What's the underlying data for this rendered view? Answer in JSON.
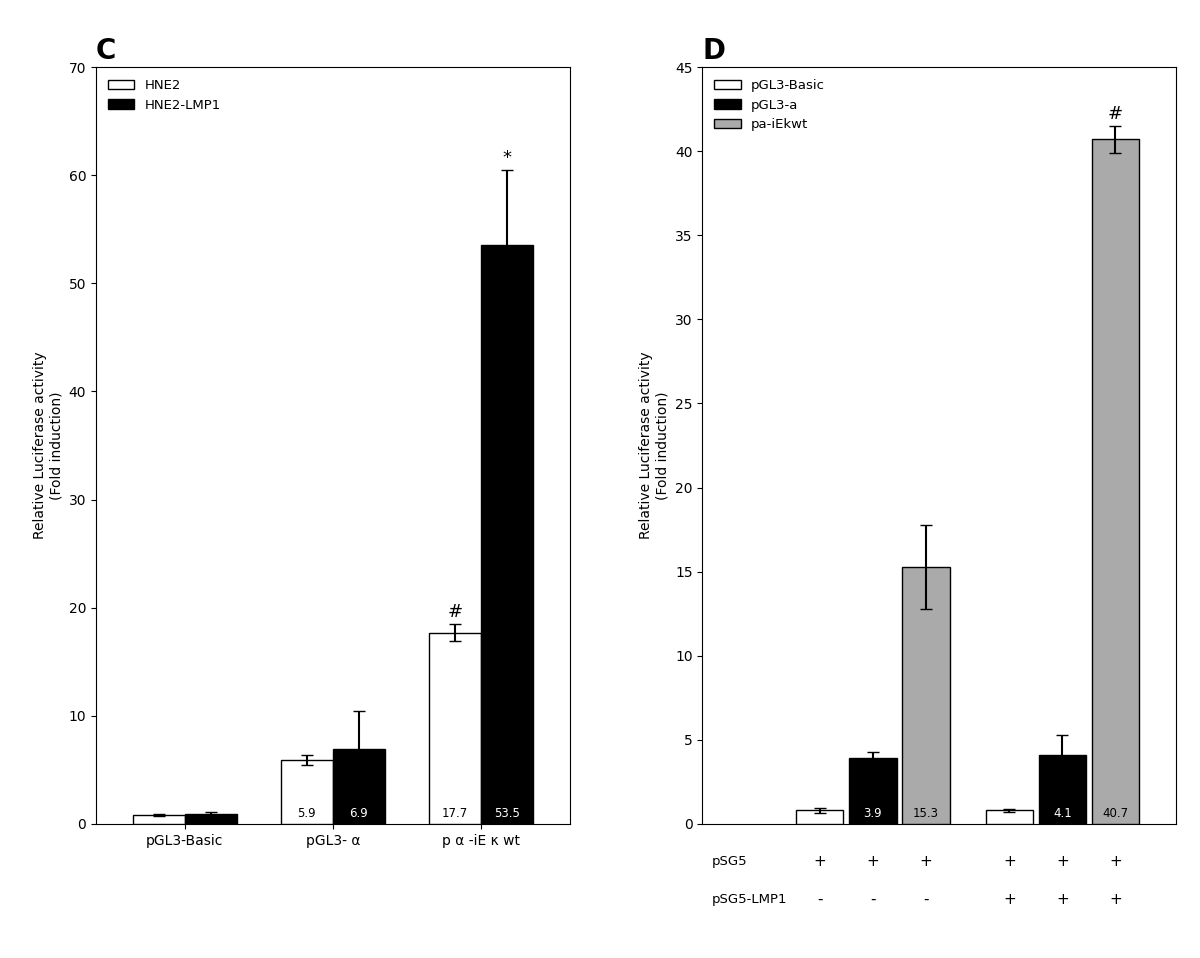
{
  "chart_data": [
    {
      "type": "bar",
      "title": "C",
      "categories": [
        "pGL3-Basic",
        "pGL3- α",
        "p α -iE κ wt"
      ],
      "y_label": "Relative Luciferase activity\n(Fold induction)",
      "ylim": [
        0,
        70
      ],
      "yticks": [
        0,
        10,
        20,
        30,
        40,
        50,
        60,
        70
      ],
      "legend": "upper left",
      "series": [
        {
          "name": "HNE2",
          "color": "white",
          "values": [
            0.8,
            5.9,
            17.7
          ],
          "errors": [
            0.1,
            0.5,
            0.8
          ],
          "value_labels": [
            null,
            "5.9",
            "17.7"
          ]
        },
        {
          "name": "HNE2-LMP1",
          "color": "black",
          "values": [
            0.9,
            6.9,
            53.5
          ],
          "errors": [
            0.2,
            3.5,
            7.0
          ],
          "value_labels": [
            null,
            "6.9",
            "53.5"
          ]
        }
      ],
      "annotations": [
        {
          "text": "#",
          "series": "HNE2",
          "category": "p α -iE κ wt"
        },
        {
          "text": "*",
          "series": "HNE2-LMP1",
          "category": "p α -iE κ wt"
        }
      ]
    },
    {
      "type": "bar",
      "title": "D",
      "categories": [
        null,
        null
      ],
      "tick_labels": "y",
      "y_label": "Relative Luciferase activity\n(Fold induction)",
      "ylim": [
        0,
        45
      ],
      "yticks": [
        0,
        5,
        10,
        15,
        20,
        25,
        30,
        35,
        40,
        45
      ],
      "legend": "upper left",
      "series": [
        {
          "name": "pGL3-Basic",
          "color": "white",
          "values": [
            0.8,
            0.8
          ],
          "errors": [
            0.15,
            0.1
          ],
          "value_labels": [
            null,
            null
          ]
        },
        {
          "name": "pGL3-a",
          "color": "black",
          "values": [
            3.9,
            4.1
          ],
          "errors": [
            0.4,
            1.2
          ],
          "value_labels": [
            "3.9",
            "4.1"
          ]
        },
        {
          "name": "pa-iEkwt",
          "color": "#aaaaaa",
          "values": [
            15.3,
            40.7
          ],
          "errors": [
            2.5,
            0.8
          ],
          "value_labels": [
            "15.3",
            "40.7"
          ]
        }
      ],
      "annotations": [
        {
          "text": "#",
          "series": "pa-iEkwt",
          "category_index": 1
        },
        {
          "text": "pSG5",
          "signs": [
            "+",
            "+",
            "+",
            "+",
            "+",
            "+"
          ]
        },
        {
          "text": "pSG5-LMP1",
          "signs": [
            "-",
            "-",
            "-",
            "+",
            "+",
            "+"
          ]
        }
      ]
    }
  ]
}
